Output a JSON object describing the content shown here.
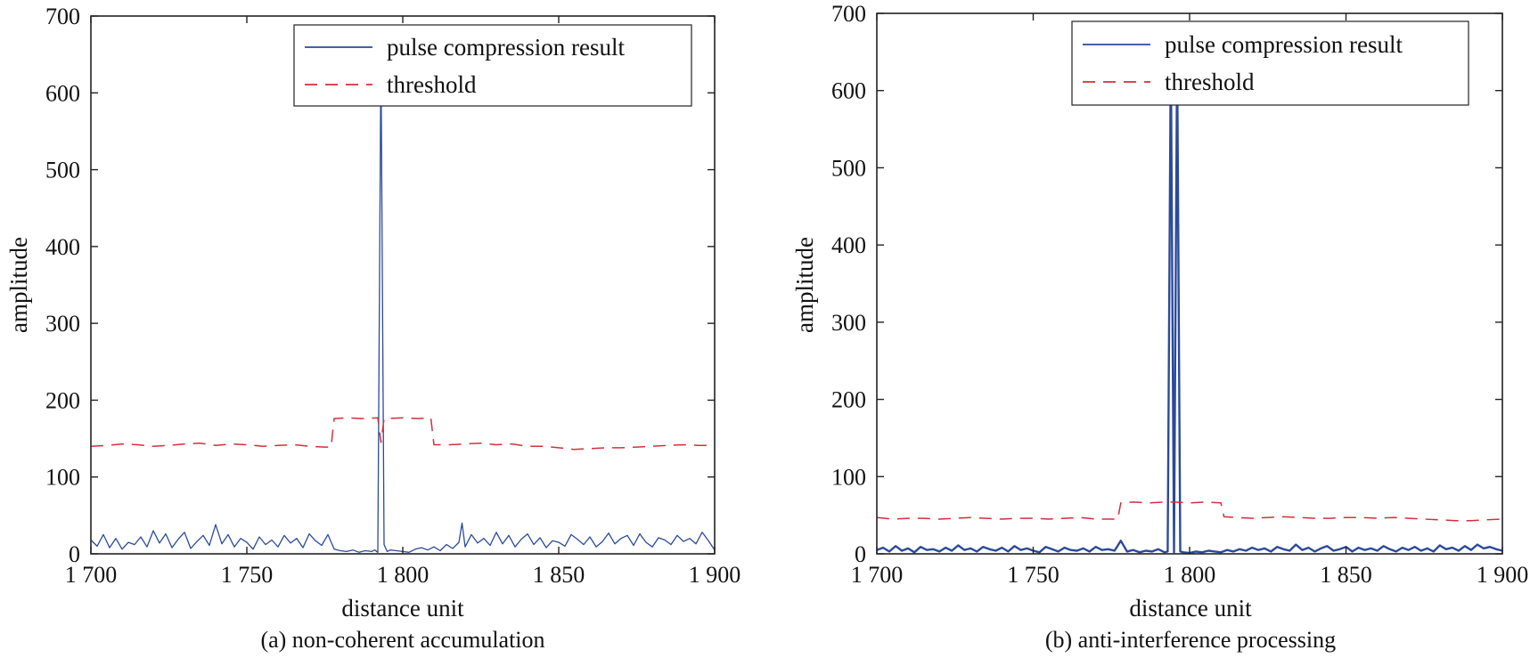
{
  "chart_data": [
    {
      "type": "line",
      "caption": "(a) non-coherent accumulation",
      "xlabel": "distance unit",
      "ylabel": "amplitude",
      "xlim": [
        1700,
        1900
      ],
      "ylim": [
        0,
        700
      ],
      "xticks": [
        1700,
        1750,
        1800,
        1850,
        1900
      ],
      "xtick_labels": [
        "1 700",
        "1 750",
        "1 800",
        "1 850",
        "1 900"
      ],
      "yticks": [
        0,
        100,
        200,
        300,
        400,
        500,
        600,
        700
      ],
      "ytick_labels": [
        "0",
        "100",
        "200",
        "300",
        "400",
        "500",
        "600",
        "700"
      ],
      "legend_position": "top-right",
      "series": [
        {
          "name": "pulse compression result",
          "style": "solid",
          "color": "#2b4a9b",
          "x": [
            1700,
            1702,
            1704,
            1706,
            1708,
            1710,
            1712,
            1714,
            1716,
            1718,
            1720,
            1722,
            1724,
            1726,
            1728,
            1730,
            1732,
            1734,
            1736,
            1738,
            1740,
            1742,
            1744,
            1746,
            1748,
            1750,
            1752,
            1754,
            1756,
            1758,
            1760,
            1762,
            1764,
            1766,
            1768,
            1770,
            1772,
            1774,
            1776,
            1778,
            1780,
            1782,
            1784,
            1786,
            1788,
            1790,
            1791,
            1792,
            1793,
            1794,
            1795,
            1796,
            1798,
            1800,
            1802,
            1804,
            1806,
            1808,
            1810,
            1812,
            1814,
            1816,
            1818,
            1819,
            1820,
            1822,
            1824,
            1826,
            1828,
            1830,
            1832,
            1834,
            1836,
            1838,
            1840,
            1842,
            1844,
            1846,
            1848,
            1850,
            1852,
            1854,
            1856,
            1858,
            1860,
            1862,
            1864,
            1866,
            1868,
            1870,
            1872,
            1874,
            1876,
            1878,
            1880,
            1882,
            1884,
            1886,
            1888,
            1890,
            1892,
            1894,
            1896,
            1898,
            1900
          ],
          "y": [
            18,
            10,
            25,
            8,
            20,
            6,
            15,
            12,
            22,
            9,
            30,
            14,
            26,
            8,
            19,
            28,
            7,
            16,
            24,
            11,
            38,
            13,
            25,
            9,
            20,
            15,
            6,
            22,
            12,
            18,
            9,
            24,
            14,
            20,
            8,
            26,
            17,
            11,
            25,
            6,
            4,
            3,
            5,
            2,
            4,
            3,
            5,
            2,
            650,
            12,
            3,
            5,
            4,
            3,
            2,
            6,
            8,
            5,
            9,
            4,
            12,
            7,
            15,
            40,
            9,
            25,
            14,
            20,
            11,
            28,
            13,
            24,
            9,
            19,
            26,
            12,
            21,
            8,
            17,
            15,
            10,
            25,
            19,
            12,
            22,
            9,
            16,
            27,
            13,
            20,
            24,
            11,
            26,
            15,
            9,
            21,
            18,
            12,
            24,
            16,
            20,
            13,
            28,
            17,
            5
          ],
          "values_note": "noise"
        },
        {
          "name": "threshold",
          "style": "dashed",
          "color": "#d0303a",
          "x": [
            1700,
            1705,
            1710,
            1715,
            1720,
            1725,
            1730,
            1735,
            1740,
            1745,
            1750,
            1755,
            1760,
            1765,
            1770,
            1775,
            1777,
            1778,
            1782,
            1787,
            1792,
            1793,
            1794,
            1795,
            1800,
            1805,
            1809,
            1810,
            1815,
            1820,
            1825,
            1830,
            1835,
            1840,
            1845,
            1850,
            1855,
            1860,
            1865,
            1870,
            1875,
            1880,
            1885,
            1890,
            1895,
            1900
          ],
          "y": [
            140,
            141,
            143,
            142,
            140,
            141,
            143,
            144,
            141,
            143,
            142,
            140,
            141,
            142,
            140,
            139,
            139,
            176,
            177,
            176,
            177,
            145,
            176,
            176,
            177,
            176,
            177,
            142,
            142,
            143,
            144,
            142,
            143,
            140,
            140,
            138,
            136,
            137,
            138,
            138,
            139,
            140,
            141,
            142,
            141,
            141
          ]
        }
      ]
    },
    {
      "type": "line",
      "caption": "(b) anti-interference processing",
      "xlabel": "distance unit",
      "ylabel": "amplitude",
      "xlim": [
        1700,
        1900
      ],
      "ylim": [
        0,
        700
      ],
      "xticks": [
        1700,
        1750,
        1800,
        1850,
        1900
      ],
      "xtick_labels": [
        "1 700",
        "1 750",
        "1 800",
        "1 850",
        "1 900"
      ],
      "yticks": [
        0,
        100,
        200,
        300,
        400,
        500,
        600,
        700
      ],
      "ytick_labels": [
        "0",
        "100",
        "200",
        "300",
        "400",
        "500",
        "600",
        "700"
      ],
      "legend_position": "top-right",
      "series": [
        {
          "name": "pulse compression result",
          "style": "solid",
          "color": "#2b4a9b",
          "x": [
            1700,
            1702,
            1704,
            1706,
            1708,
            1710,
            1712,
            1714,
            1716,
            1718,
            1720,
            1722,
            1724,
            1726,
            1728,
            1730,
            1732,
            1734,
            1736,
            1738,
            1740,
            1742,
            1744,
            1746,
            1748,
            1750,
            1752,
            1754,
            1756,
            1758,
            1760,
            1762,
            1764,
            1766,
            1768,
            1770,
            1772,
            1774,
            1776,
            1778,
            1780,
            1782,
            1784,
            1786,
            1788,
            1790,
            1792,
            1793,
            1794,
            1795,
            1796,
            1797,
            1798,
            1800,
            1802,
            1804,
            1806,
            1808,
            1810,
            1812,
            1814,
            1816,
            1818,
            1820,
            1822,
            1824,
            1826,
            1828,
            1830,
            1832,
            1834,
            1836,
            1838,
            1840,
            1842,
            1844,
            1846,
            1848,
            1850,
            1852,
            1854,
            1856,
            1858,
            1860,
            1862,
            1864,
            1866,
            1868,
            1870,
            1872,
            1874,
            1876,
            1878,
            1880,
            1882,
            1884,
            1886,
            1888,
            1890,
            1892,
            1894,
            1896,
            1898,
            1900
          ],
          "y": [
            5,
            8,
            3,
            10,
            4,
            7,
            2,
            9,
            5,
            6,
            3,
            8,
            4,
            11,
            5,
            7,
            3,
            9,
            6,
            4,
            8,
            3,
            10,
            5,
            7,
            4,
            2,
            9,
            6,
            3,
            8,
            5,
            4,
            7,
            3,
            9,
            5,
            6,
            4,
            17,
            3,
            5,
            2,
            4,
            3,
            6,
            2,
            3,
            650,
            2,
            650,
            3,
            2,
            1,
            3,
            2,
            4,
            3,
            2,
            5,
            3,
            6,
            4,
            8,
            5,
            7,
            3,
            9,
            6,
            4,
            12,
            5,
            8,
            3,
            7,
            10,
            4,
            6,
            9,
            3,
            8,
            5,
            7,
            4,
            10,
            6,
            3,
            8,
            5,
            9,
            4,
            7,
            3,
            11,
            6,
            8,
            4,
            10,
            5,
            12,
            7,
            9,
            6,
            4
          ]
        },
        {
          "name": "threshold",
          "style": "dashed",
          "color": "#d0303a",
          "x": [
            1700,
            1705,
            1710,
            1715,
            1720,
            1725,
            1730,
            1735,
            1740,
            1745,
            1750,
            1755,
            1760,
            1765,
            1770,
            1775,
            1777,
            1778,
            1782,
            1787,
            1792,
            1795,
            1800,
            1805,
            1810,
            1811,
            1815,
            1820,
            1825,
            1830,
            1835,
            1840,
            1845,
            1850,
            1855,
            1860,
            1865,
            1870,
            1875,
            1880,
            1885,
            1890,
            1895,
            1900
          ],
          "y": [
            47,
            45,
            46,
            46,
            45,
            46,
            47,
            46,
            45,
            46,
            46,
            45,
            46,
            47,
            45,
            45,
            45,
            66,
            67,
            66,
            67,
            67,
            66,
            67,
            66,
            48,
            47,
            46,
            47,
            48,
            47,
            46,
            46,
            47,
            47,
            46,
            47,
            46,
            45,
            44,
            43,
            43,
            44,
            45
          ]
        }
      ]
    }
  ]
}
